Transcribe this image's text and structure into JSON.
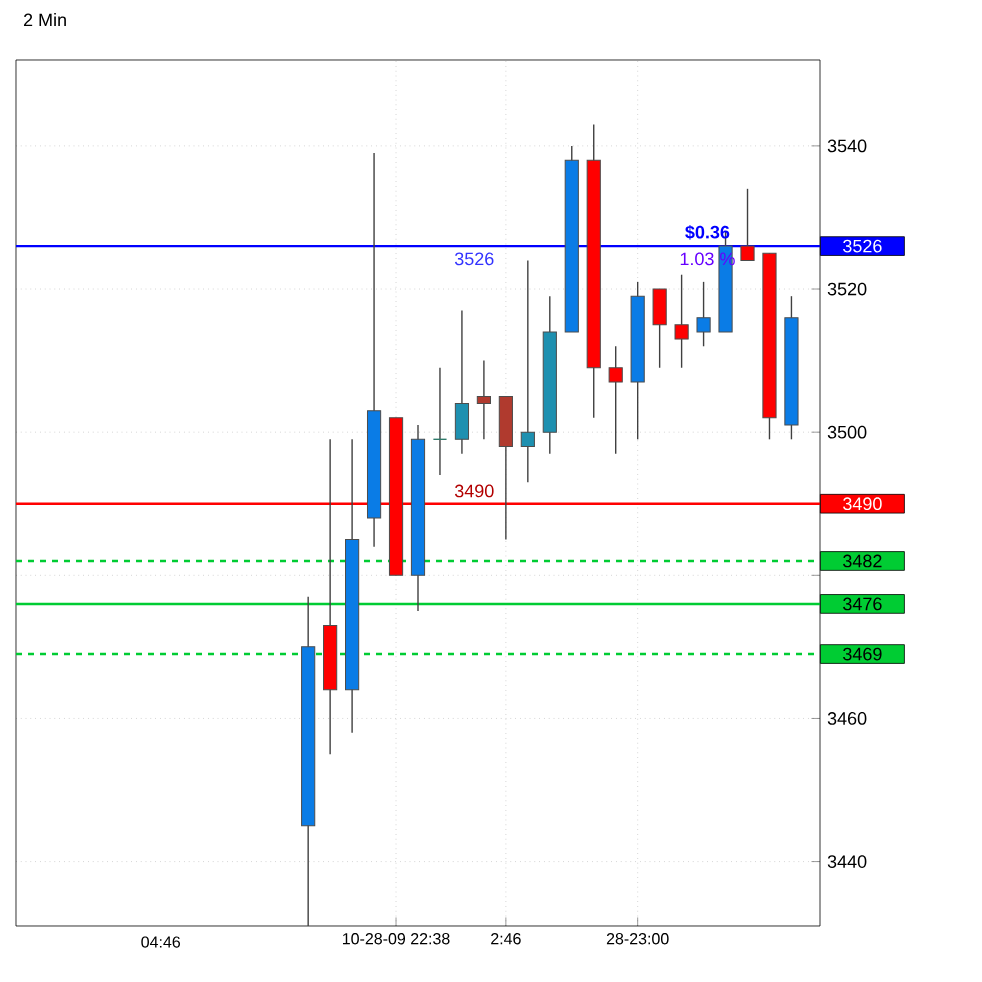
{
  "chart_data": {
    "type": "candlestick",
    "title": "2 Min",
    "categories": [
      null,
      null,
      null,
      null,
      "10-28-09 22:38",
      null,
      null,
      null,
      null,
      "2:46",
      null,
      null,
      null,
      null,
      null,
      "28-23:00",
      null,
      null,
      null,
      null,
      null,
      null,
      null
    ],
    "ohlc": [
      [
        3445,
        3477,
        3431,
        3470
      ],
      [
        3473,
        3499,
        3455,
        3464
      ],
      [
        3464,
        3499,
        3458,
        3485
      ],
      [
        3488,
        3539,
        3484,
        3503
      ],
      [
        3502,
        3502,
        3480,
        3480
      ],
      [
        3480,
        3501,
        3475,
        3499
      ],
      [
        3499,
        3509,
        3494,
        3499
      ],
      [
        3499,
        3517,
        3497,
        3504
      ],
      [
        3505,
        3510,
        3499,
        3504
      ],
      [
        3505,
        3505,
        3485,
        3498
      ],
      [
        3498,
        3524,
        3493,
        3500
      ],
      [
        3500,
        3519,
        3497,
        3514
      ],
      [
        3514,
        3540,
        3514,
        3538
      ],
      [
        3538,
        3543,
        3502,
        3509
      ],
      [
        3509,
        3512,
        3497,
        3507
      ],
      [
        3507,
        3521,
        3499,
        3519
      ],
      [
        3520,
        3520,
        3509,
        3515
      ],
      [
        3515,
        3522,
        3509,
        3513
      ],
      [
        3514,
        3521,
        3512,
        3516
      ],
      [
        3514,
        3528,
        3514,
        3526
      ],
      [
        3526,
        3534,
        3524,
        3524
      ],
      [
        3525,
        3525,
        3499,
        3502
      ],
      [
        3501,
        3519,
        3499,
        3516
      ]
    ],
    "colors": [
      "#0a7ce6",
      "#ff0000",
      "#0a7ce6",
      "#0a7ce6",
      "#ff0000",
      "#0a7ce6",
      "#2e7a6a",
      "#1e90b0",
      "#b03a2e",
      "#b03a2e",
      "#1e90b0",
      "#1e90b0",
      "#0a7ce6",
      "#ff0000",
      "#ff0000",
      "#0a7ce6",
      "#ff0000",
      "#ff0000",
      "#0a7ce6",
      "#0a7ce6",
      "#ff0000",
      "#ff0000",
      "#0a7ce6"
    ],
    "ylim": [
      3431,
      3552
    ],
    "yticks": [
      3440,
      3460,
      {
        "value": 3480,
        "label": null
      },
      3500,
      3520,
      3540
    ],
    "grid": true,
    "ref_lines": [
      {
        "axis": "y",
        "value": 3526,
        "label": "3526",
        "color": "#0000ff",
        "line_style": "solid"
      },
      {
        "axis": "y",
        "value": 3490,
        "label": "3490",
        "color": "#ff0000",
        "line_style": "solid"
      },
      {
        "axis": "y",
        "value": 3482,
        "label": "3482",
        "color": "#00cc33",
        "line_style": "dashed"
      },
      {
        "axis": "y",
        "value": 3476,
        "label": "3476",
        "color": "#00cc33",
        "line_style": "solid"
      },
      {
        "axis": "y",
        "value": 3469,
        "label": "3469",
        "color": "#00cc33",
        "line_style": "dashed"
      }
    ],
    "annotations": [
      {
        "text": "$0.36",
        "y": 3526
      },
      {
        "text": "1.03 %",
        "y": 3526
      },
      {
        "text": "3526",
        "y": 3526
      },
      {
        "text": "3490",
        "y": 3490
      },
      "04:46"
    ]
  }
}
